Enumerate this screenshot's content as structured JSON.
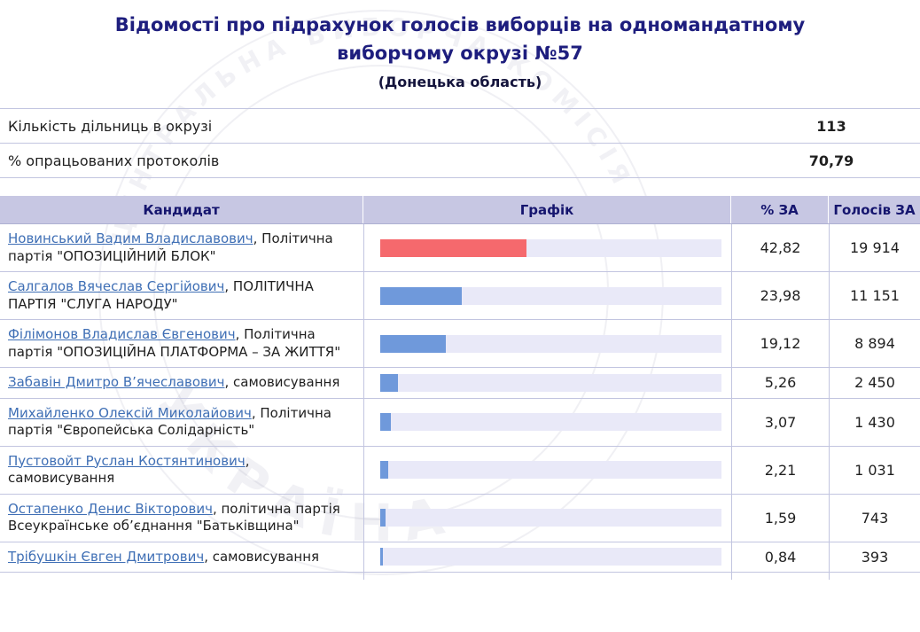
{
  "title": {
    "heading": "Відомості про підрахунок голосів виборців на одномандатному виборчому окрузі №57",
    "region": "(Донецька область)"
  },
  "summary": {
    "rows": [
      {
        "label": "Кількість дільниць в окрузі",
        "value": "113"
      },
      {
        "label": "% опрацьованих протоколів",
        "value": "70,79"
      }
    ]
  },
  "results_table": {
    "headers": {
      "candidate": "Кандидат",
      "chart": "Графік",
      "percent": "% ЗА",
      "votes": "Голосів ЗА"
    },
    "rows": [
      {
        "name": "Новинський Вадим Владиславович",
        "party": ", Політична партія \"ОПОЗИЦІЙНИЙ БЛОК\"",
        "percent": "42,82",
        "votes": "19 914",
        "bar_pct": 42.82,
        "bar_color": "red"
      },
      {
        "name": "Салгалов Вячеслав Сергійович",
        "party": ", ПОЛІТИЧНА ПАРТІЯ \"СЛУГА НАРОДУ\"",
        "percent": "23,98",
        "votes": "11 151",
        "bar_pct": 23.98,
        "bar_color": "blue"
      },
      {
        "name": "Філімонов Владислав Євгенович",
        "party": ", Політична партія \"ОПОЗИЦІЙНА ПЛАТФОРМА – ЗА ЖИТТЯ\"",
        "percent": "19,12",
        "votes": "8 894",
        "bar_pct": 19.12,
        "bar_color": "blue"
      },
      {
        "name": "Забавін Дмитро В’ячеславович",
        "party": ", самовисування",
        "percent": "5,26",
        "votes": "2 450",
        "bar_pct": 5.26,
        "bar_color": "blue"
      },
      {
        "name": "Михайленко Олексій Миколайович",
        "party": ", Політична партія \"Європейська Солідарність\"",
        "percent": "3,07",
        "votes": "1 430",
        "bar_pct": 3.07,
        "bar_color": "blue"
      },
      {
        "name": "Пустовойт Руслан Костянтинович",
        "party": ", самовисування",
        "percent": "2,21",
        "votes": "1 031",
        "bar_pct": 2.21,
        "bar_color": "blue"
      },
      {
        "name": "Остапенко Денис Вікторович",
        "party": ", політична партія Всеукраїнське об’єднання \"Батьківщина\"",
        "percent": "1,59",
        "votes": "743",
        "bar_pct": 1.59,
        "bar_color": "blue"
      },
      {
        "name": "Трібушкін Євген Дмитрович",
        "party": ", самовисування",
        "percent": "0,84",
        "votes": "393",
        "bar_pct": 0.84,
        "bar_color": "blue"
      }
    ]
  },
  "watermark": {
    "text_top": "ЦЕНТРАЛЬНА ВИБОРЧА КОМІСІЯ",
    "text_bottom": "УКРАЇНА"
  },
  "colors": {
    "bar_red": "#f5696d",
    "bar_blue": "#6f99db",
    "track": "#e9e9f8",
    "header_bg": "#c7c7e3",
    "title_navy": "#1e1e7e",
    "link_blue": "#3f6fb5"
  },
  "chart_data": {
    "type": "bar",
    "orientation": "horizontal",
    "title": "Графік",
    "xlabel": "% ЗА",
    "xlim": [
      0,
      100
    ],
    "categories": [
      "Новинський Вадим Владиславович",
      "Салгалов Вячеслав Сергійович",
      "Філімонов Владислав Євгенович",
      "Забавін Дмитро В’ячеславович",
      "Михайленко Олексій Миколайович",
      "Пустовойт Руслан Костянтинович",
      "Остапенко Денис Вікторович",
      "Трібушкін Євген Дмитрович"
    ],
    "series": [
      {
        "name": "% ЗА",
        "values": [
          42.82,
          23.98,
          19.12,
          5.26,
          3.07,
          2.21,
          1.59,
          0.84
        ]
      },
      {
        "name": "Голосів ЗА",
        "values": [
          19914,
          11151,
          8894,
          2450,
          1430,
          1031,
          743,
          393
        ]
      }
    ],
    "bar_colors": [
      "#f5696d",
      "#6f99db",
      "#6f99db",
      "#6f99db",
      "#6f99db",
      "#6f99db",
      "#6f99db",
      "#6f99db"
    ]
  }
}
